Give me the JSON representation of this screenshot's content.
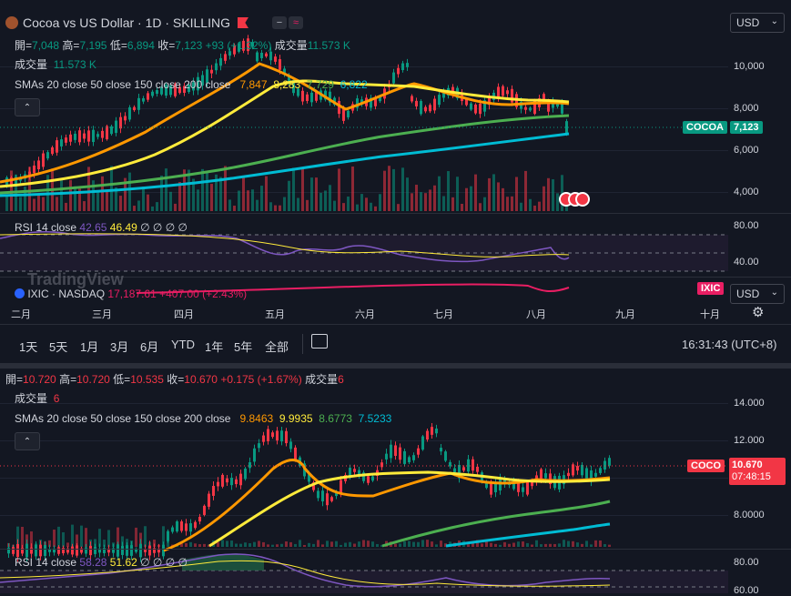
{
  "top": {
    "title": "Cocoa vs US Dollar · 1D · SKILLING",
    "currency": "USD",
    "ohlc": {
      "open_label": "開",
      "open": "7,048",
      "high_label": "高",
      "high": "7,195",
      "low_label": "低",
      "low": "6,894",
      "close_label": "收",
      "close": "7,123",
      "change": "+93 (+1.32%)",
      "volume_label": "成交量",
      "volume": "11.573 K"
    },
    "volume_row": {
      "label": "成交量",
      "value": "11.573 K"
    },
    "smas": {
      "label": "SMAs 20 close 50 close 150 close 200 close",
      "v1": "7,847",
      "v2": "8,283",
      "v3": "7,729",
      "v4": "6,822"
    },
    "price_axis": [
      "10,000",
      "8,000",
      "6,000",
      "4,000"
    ],
    "last_price": {
      "symbol": "COCOA",
      "value": "7,123",
      "color": "#089981"
    },
    "rsi": {
      "label": "RSI 14 close",
      "v1": "42.65",
      "v2": "46.49",
      "zeros": "∅ ∅ ∅ ∅",
      "axis": [
        "80.00",
        "40.00"
      ]
    },
    "compare": {
      "symbol": "IXIC",
      "exchange": "NASDAQ",
      "values": "17,187.61 +407.00 (+2.43%)",
      "tag": "IXIC",
      "currency": "USD",
      "logo": "TradingView"
    },
    "months": [
      "二月",
      "三月",
      "四月",
      "五月",
      "六月",
      "七月",
      "八月",
      "九月",
      "十月"
    ]
  },
  "toolbar": {
    "timeframes": [
      "1天",
      "5天",
      "1月",
      "3月",
      "6月",
      "YTD",
      "1年",
      "5年",
      "全部"
    ],
    "clock": "16:31:43 (UTC+8)",
    "replay_icon": "calendar-range-icon",
    "settings_icon": "gear-icon"
  },
  "bottom": {
    "ohlc": {
      "open_label": "開",
      "open": "10.720",
      "high_label": "高",
      "high": "10.720",
      "low_label": "低",
      "low": "10.535",
      "close_label": "收",
      "close": "10.670",
      "change": "+0.175 (+1.67%)",
      "volume_label": "成交量",
      "volume": "6"
    },
    "volume_row": {
      "label": "成交量",
      "value": "6"
    },
    "smas": {
      "label": "SMAs 20 close 50 close 150 close 200 close",
      "v1": "9.8463",
      "v2": "9.9935",
      "v3": "8.6773",
      "v4": "7.5233"
    },
    "price_axis": [
      "14.000",
      "12.000",
      "8.0000"
    ],
    "last_price": {
      "symbol": "COCO",
      "value": "10.670",
      "countdown": "07:48:15",
      "color": "#f23645"
    },
    "rsi": {
      "label": "RSI 14 close",
      "v1": "58.28",
      "v2": "51.62",
      "zeros": "∅ ∅ ∅ ∅",
      "axis": [
        "80.00",
        "60.00"
      ]
    }
  },
  "colors": {
    "bg": "#131722",
    "up": "#089981",
    "down": "#f23645",
    "sma20": "#ff9800",
    "sma50": "#ffeb3b",
    "sma150": "#4caf50",
    "sma200": "#00bcd4",
    "rsi": "#7e57c2",
    "rsi_ma": "#ffeb3b",
    "compare": "#e91e63"
  }
}
